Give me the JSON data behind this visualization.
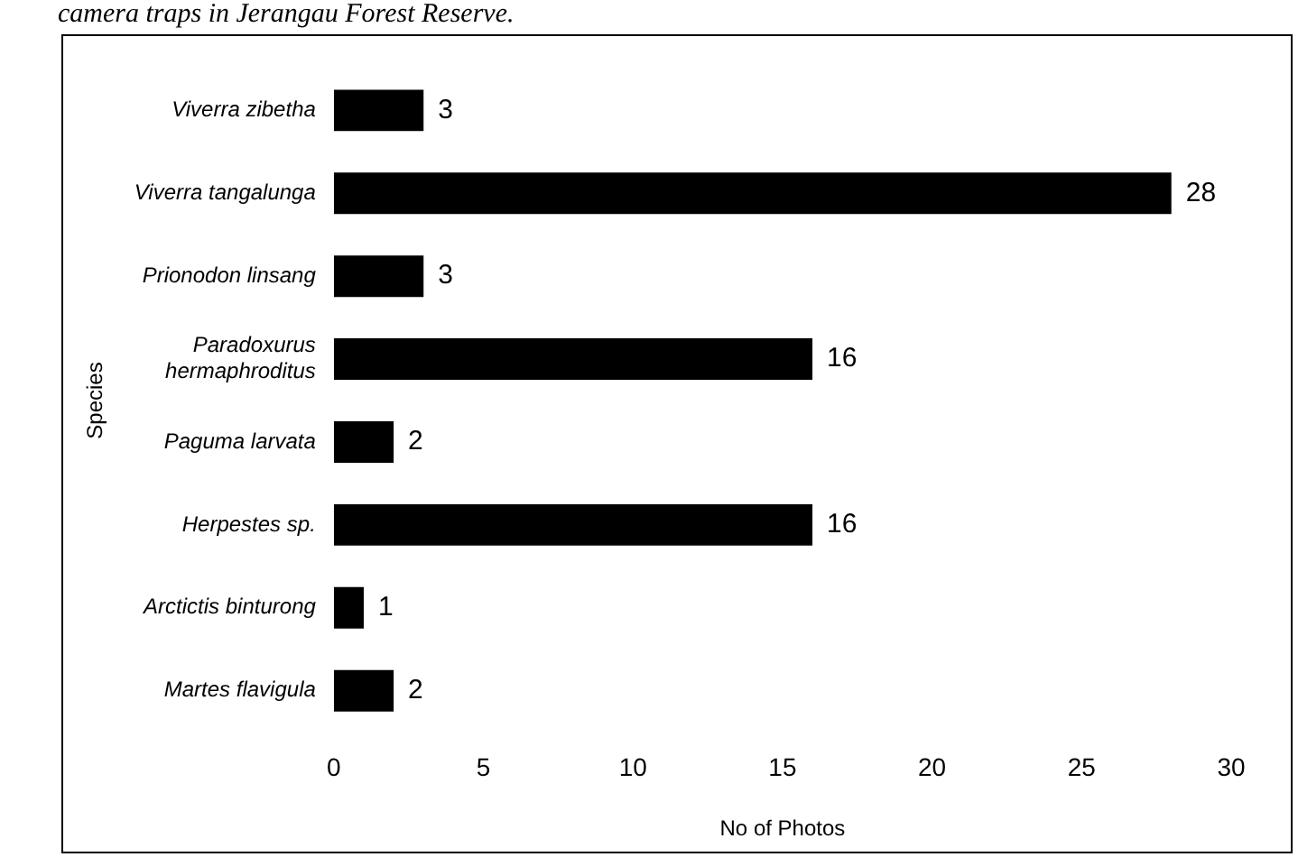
{
  "chart_data": {
    "type": "bar",
    "orientation": "horizontal",
    "title": "camera traps in Jerangau Forest Reserve.",
    "xlabel": "No of Photos",
    "ylabel": "Species",
    "categories": [
      "Viverra zibetha",
      "Viverra tangalunga",
      "Prionodon linsang",
      "Paradoxurus hermaphroditus",
      "Paguma larvata",
      "Herpestes sp.",
      "Arctictis binturong",
      "Martes flavigula"
    ],
    "values": [
      3,
      28,
      3,
      16,
      2,
      16,
      1,
      2
    ],
    "color": "#000000",
    "xlim": [
      0,
      30
    ],
    "xticks": [
      0,
      5,
      10,
      15,
      20,
      25,
      30
    ],
    "grid": false,
    "data_labels": true
  }
}
